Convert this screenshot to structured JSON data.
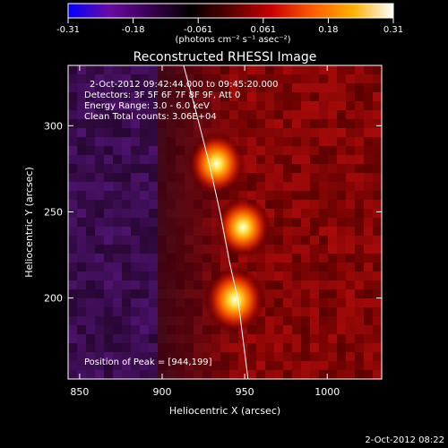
{
  "colorbar": {
    "ticks": [
      "-0.31",
      "-0.18",
      "-0.061",
      "0.061",
      "0.18",
      "0.31"
    ],
    "units": "(photons cm⁻² s⁻¹ asec⁻²)",
    "colors": [
      "#0000ff",
      "#6a0aa6",
      "#3a0052",
      "#000000",
      "#5a0000",
      "#c80000",
      "#ff5a00",
      "#ffb000",
      "#ffffff"
    ]
  },
  "chart_data": {
    "type": "heatmap",
    "title": "Reconstructed RHESSI Image",
    "xlabel": "Heliocentric X (arcsec)",
    "ylabel": "Heliocentric Y (arcsec)",
    "xlim": [
      843,
      1033
    ],
    "ylim": [
      153,
      335
    ],
    "xticks": [
      850,
      900,
      950,
      1000
    ],
    "yticks": [
      200,
      250,
      300
    ],
    "sources": [
      {
        "x": 933,
        "y": 278,
        "peak": 0.85
      },
      {
        "x": 949,
        "y": 241,
        "peak": 0.78
      },
      {
        "x": 944,
        "y": 199,
        "peak": 1.0
      }
    ],
    "limb": [
      [
        913,
        335
      ],
      [
        920,
        310
      ],
      [
        928,
        280
      ],
      [
        935,
        250
      ],
      [
        941,
        220
      ],
      [
        946,
        199
      ],
      [
        952,
        153
      ]
    ],
    "annotations": {
      "time": "2-Oct-2012 09:42:44.000 to 09:45:20.000",
      "detectors": "Detectors: 3F 5F 6F 7F 8F 9F, Att 0",
      "energy": "Energy Range: 3.0 - 6.0 keV",
      "clean": "Clean    Total counts: 3.06E+04",
      "peak": "Position of Peak = [944,199]"
    }
  },
  "footer": {
    "timestamp": "2-Oct-2012 08:22"
  }
}
